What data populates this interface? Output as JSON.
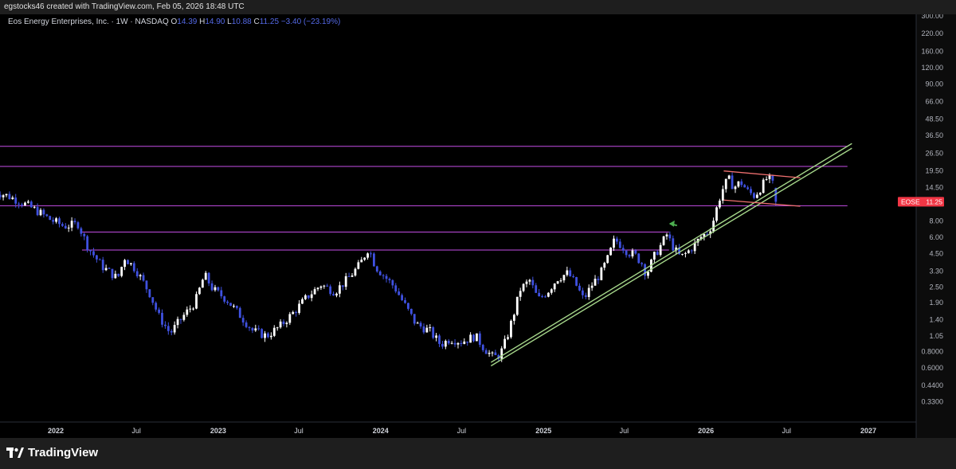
{
  "header": {
    "credit": "egstocks46 created with TradingView.com, Feb 05, 2026 18:48 UTC"
  },
  "legend": {
    "title": "Eos Energy Enterprises, Inc. · 1W · NASDAQ",
    "open_label": "O",
    "open": "14.39",
    "high_label": "H",
    "high": "14.90",
    "low_label": "L",
    "low": "10.88",
    "close_label": "C",
    "close": "11.25",
    "change": "−3.40 (−23.19%)"
  },
  "footer": {
    "brand": "TradingView",
    "logo_icon": "tradingview-logo-icon"
  },
  "colors": {
    "background": "#000000",
    "candle_up": "#ffffff",
    "candle_down": "#3f51e0",
    "level_line": "#c64ee8",
    "trend_line": "#a5d68a",
    "channel": "#f07070",
    "price_tag": "#f23645",
    "arrow": "#4caf50"
  },
  "chart_data": {
    "type": "candlestick",
    "symbol": "EOSE",
    "last_price": "11.25",
    "y_scale": "log",
    "ylim": [
      0.28,
      300
    ],
    "y_ticks": [
      "300.00",
      "220.00",
      "160.00",
      "120.00",
      "90.00",
      "66.00",
      "48.50",
      "36.50",
      "26.50",
      "19.50",
      "14.50",
      "8.00",
      "6.00",
      "4.50",
      "3.30",
      "2.50",
      "1.90",
      "1.40",
      "1.05",
      "0.8000",
      "0.6000",
      "0.4400",
      "0.3300"
    ],
    "x_ticks": [
      {
        "label": "2022",
        "date": "2022-01-01",
        "bold": true
      },
      {
        "label": "Jul",
        "date": "2022-07-01",
        "bold": false
      },
      {
        "label": "2023",
        "date": "2023-01-01",
        "bold": true
      },
      {
        "label": "Jul",
        "date": "2023-07-01",
        "bold": false
      },
      {
        "label": "2024",
        "date": "2024-01-01",
        "bold": true
      },
      {
        "label": "Jul",
        "date": "2024-07-01",
        "bold": false
      },
      {
        "label": "2025",
        "date": "2025-01-01",
        "bold": true
      },
      {
        "label": "Jul",
        "date": "2025-07-01",
        "bold": false
      },
      {
        "label": "2026",
        "date": "2026-01-01",
        "bold": true
      },
      {
        "label": "Jul",
        "date": "2026-07-01",
        "bold": false
      },
      {
        "label": "2027",
        "date": "2027-01-01",
        "bold": true
      }
    ],
    "price_path": [
      [
        "2021-08-15",
        13.5
      ],
      [
        "2021-09-15",
        12.5
      ],
      [
        "2021-10-15",
        11.2
      ],
      [
        "2021-11-15",
        9.8
      ],
      [
        "2021-12-20",
        8.2
      ],
      [
        "2022-01-20",
        7.3
      ],
      [
        "2022-02-20",
        7.6
      ],
      [
        "2022-03-15",
        5.0
      ],
      [
        "2022-04-15",
        3.6
      ],
      [
        "2022-05-20",
        2.9
      ],
      [
        "2022-06-05",
        4.2
      ],
      [
        "2022-06-30",
        3.4
      ],
      [
        "2022-08-01",
        2.2
      ],
      [
        "2022-08-20",
        1.5
      ],
      [
        "2022-09-15",
        1.1
      ],
      [
        "2022-10-15",
        1.5
      ],
      [
        "2022-11-10",
        1.9
      ],
      [
        "2022-12-01",
        3.1
      ],
      [
        "2022-12-20",
        2.4
      ],
      [
        "2023-01-20",
        2.0
      ],
      [
        "2023-02-20",
        1.5
      ],
      [
        "2023-03-20",
        1.15
      ],
      [
        "2023-04-20",
        1.05
      ],
      [
        "2023-05-20",
        1.25
      ],
      [
        "2023-06-20",
        1.6
      ],
      [
        "2023-07-20",
        2.1
      ],
      [
        "2023-08-20",
        2.6
      ],
      [
        "2023-09-20",
        2.3
      ],
      [
        "2023-10-20",
        2.9
      ],
      [
        "2023-11-15",
        3.7
      ],
      [
        "2023-12-05",
        5.0
      ],
      [
        "2023-12-20",
        3.6
      ],
      [
        "2024-01-10",
        3.0
      ],
      [
        "2024-02-01",
        2.5
      ],
      [
        "2024-02-25",
        1.8
      ],
      [
        "2024-03-20",
        1.3
      ],
      [
        "2024-04-20",
        1.15
      ],
      [
        "2024-05-15",
        0.9
      ],
      [
        "2024-06-05",
        1.0
      ],
      [
        "2024-07-01",
        0.95
      ],
      [
        "2024-08-01",
        1.05
      ],
      [
        "2024-08-20",
        0.85
      ],
      [
        "2024-09-10",
        0.72
      ],
      [
        "2024-09-25",
        0.75
      ],
      [
        "2024-10-10",
        1.0
      ],
      [
        "2024-10-25",
        1.5
      ],
      [
        "2024-11-10",
        2.4
      ],
      [
        "2024-12-01",
        2.8
      ],
      [
        "2024-12-20",
        2.0
      ],
      [
        "2025-01-10",
        2.3
      ],
      [
        "2025-02-01",
        2.9
      ],
      [
        "2025-02-25",
        3.2
      ],
      [
        "2025-03-15",
        2.6
      ],
      [
        "2025-04-01",
        2.0
      ],
      [
        "2025-04-20",
        2.6
      ],
      [
        "2025-05-10",
        3.2
      ],
      [
        "2025-05-25",
        4.1
      ],
      [
        "2025-06-10",
        5.8
      ],
      [
        "2025-06-25",
        5.2
      ],
      [
        "2025-07-10",
        4.6
      ],
      [
        "2025-07-25",
        4.4
      ],
      [
        "2025-08-10",
        3.8
      ],
      [
        "2025-08-20",
        3.1
      ],
      [
        "2025-09-05",
        4.2
      ],
      [
        "2025-09-20",
        5.1
      ],
      [
        "2025-10-05",
        6.3
      ],
      [
        "2025-10-20",
        5.0
      ],
      [
        "2025-11-05",
        4.2
      ],
      [
        "2025-11-20",
        4.6
      ],
      [
        "2025-12-05",
        5.2
      ],
      [
        "2025-12-20",
        6.0
      ],
      [
        "2026-01-05",
        6.6
      ],
      [
        "2026-01-15",
        7.5
      ],
      [
        "2026-01-25",
        10.0
      ],
      [
        "2026-02-05",
        13.5
      ],
      [
        "2026-02-20",
        17.0
      ],
      [
        "2026-03-05",
        14.5
      ],
      [
        "2026-03-20",
        16.0
      ],
      [
        "2026-04-05",
        13.5
      ],
      [
        "2026-04-20",
        12.5
      ],
      [
        "2026-05-05",
        14.5
      ],
      [
        "2026-05-20",
        17.5
      ],
      [
        "2026-06-05",
        14.39
      ],
      [
        "2026-06-12",
        11.25
      ]
    ],
    "horizontal_levels": [
      {
        "price": 30.0,
        "start": "2021-08-01",
        "end": "2026-11-15"
      },
      {
        "price": 21.0,
        "start": "2021-08-01",
        "end": "2026-11-15"
      },
      {
        "price": 10.5,
        "start": "2021-08-01",
        "end": "2026-11-15"
      },
      {
        "price": 6.6,
        "start": "2022-03-01",
        "end": "2025-10-10"
      },
      {
        "price": 4.8,
        "start": "2022-03-01",
        "end": "2025-10-10"
      }
    ],
    "trend_lines": [
      {
        "start": [
          "2024-09-05",
          0.62
        ],
        "end": [
          "2026-11-25",
          29.0
        ]
      },
      {
        "start": [
          "2024-09-05",
          0.66
        ],
        "end": [
          "2026-11-25",
          31.5
        ]
      }
    ],
    "channel_lines": [
      {
        "start": [
          "2026-02-10",
          19.4
        ],
        "end": [
          "2026-08-01",
          17.2
        ]
      },
      {
        "start": [
          "2026-02-10",
          11.6
        ],
        "end": [
          "2026-08-01",
          10.4
        ]
      }
    ],
    "arrow": {
      "from": [
        "2025-10-28",
        7.4
      ],
      "to": [
        "2025-10-12",
        7.65
      ]
    }
  }
}
